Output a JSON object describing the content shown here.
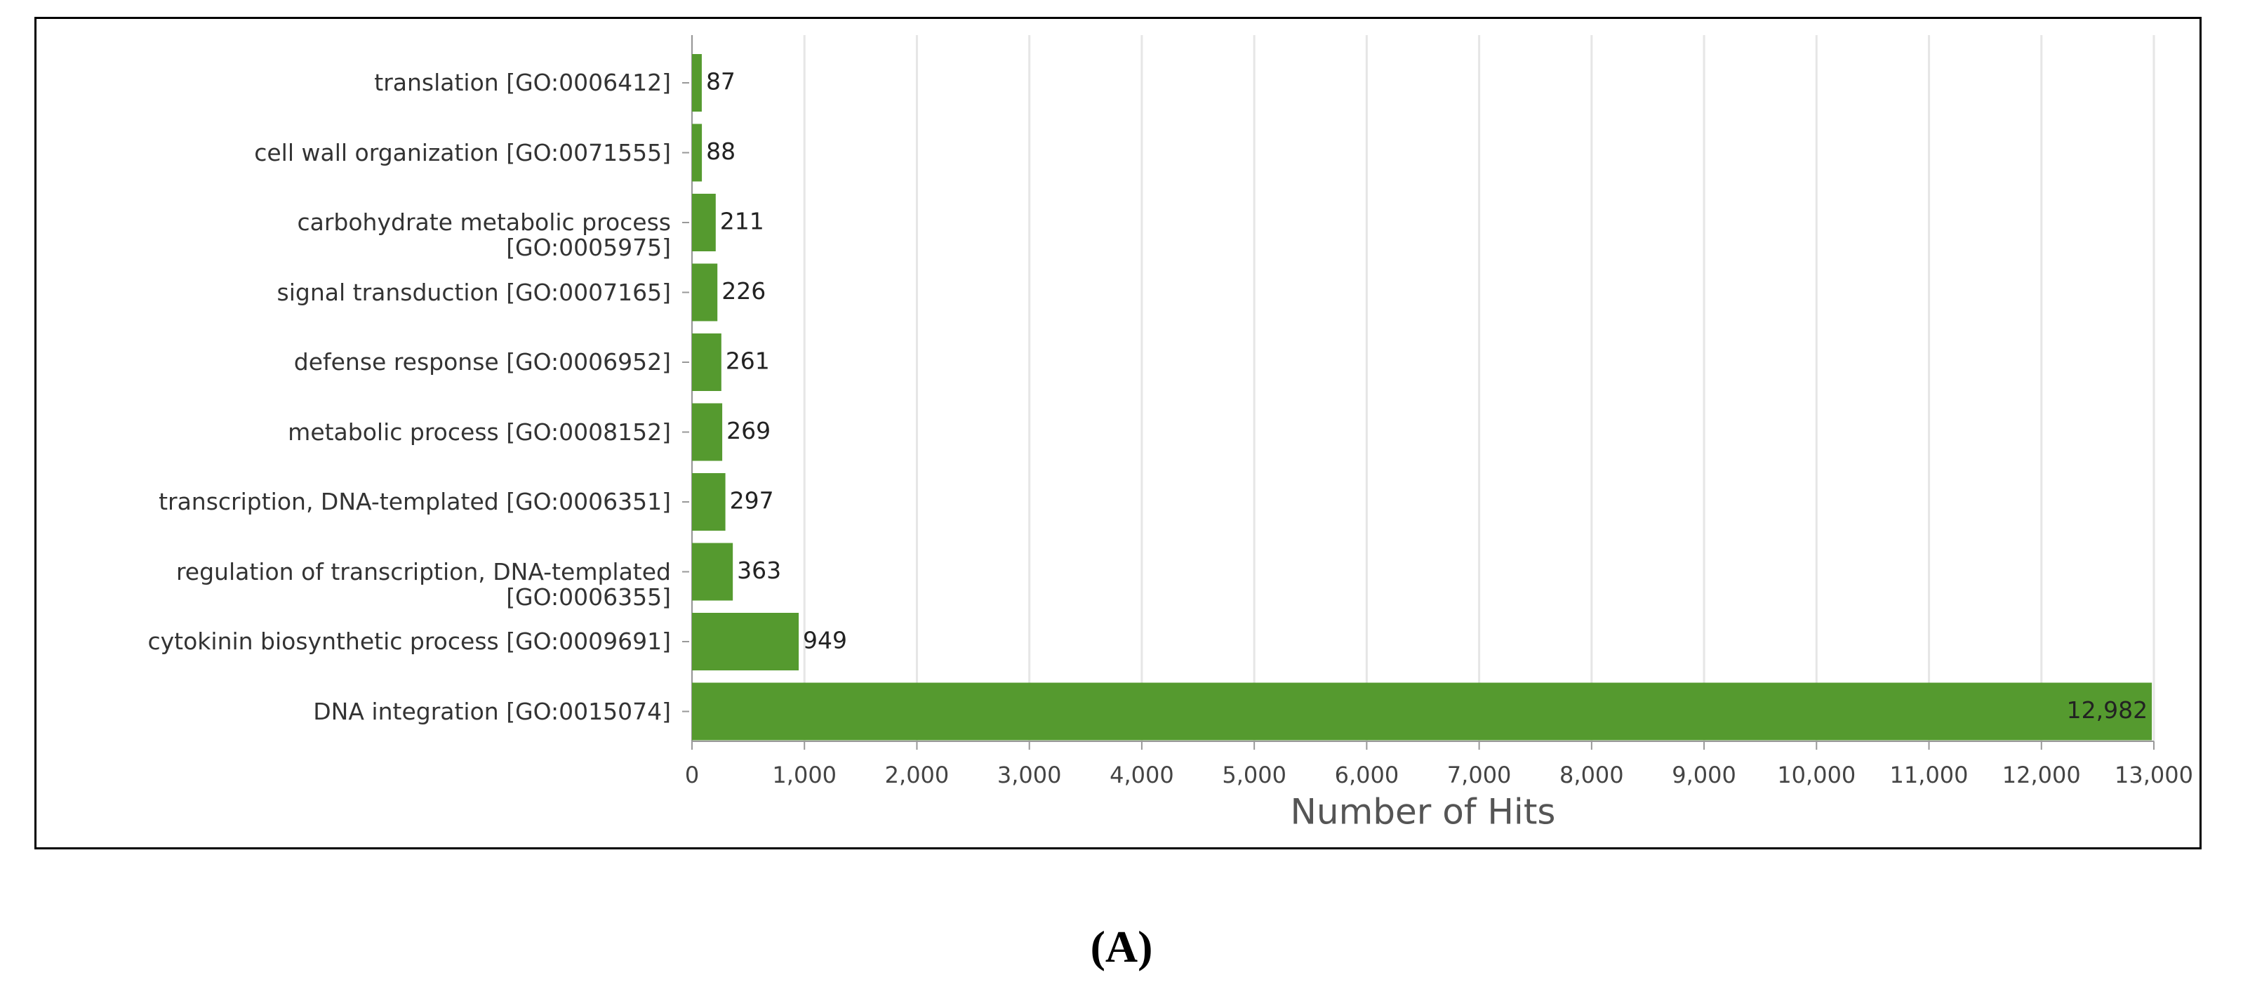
{
  "chart_data": {
    "type": "bar",
    "orientation": "horizontal",
    "categories": [
      "translation [GO:0006412]",
      "cell wall organization [GO:0071555]",
      "carbohydrate metabolic process\n[GO:0005975]",
      "signal transduction [GO:0007165]",
      "defense response [GO:0006952]",
      "metabolic process [GO:0008152]",
      "transcription, DNA-templated [GO:0006351]",
      "regulation of transcription, DNA-templated\n[GO:0006355]",
      "cytokinin biosynthetic process [GO:0009691]",
      "DNA integration [GO:0015074]"
    ],
    "values": [
      87,
      88,
      211,
      226,
      261,
      269,
      297,
      363,
      949,
      12982
    ],
    "value_labels": [
      "87",
      "88",
      "211",
      "226",
      "261",
      "269",
      "297",
      "363",
      "949",
      "12,982"
    ],
    "color": "#559a2f",
    "xlabel": "Number of Hits",
    "xlim": [
      0,
      13000
    ],
    "xticks": [
      0,
      {
        "value": 1000,
        "label": "1,000"
      },
      {
        "value": 2000,
        "label": "2,000"
      },
      {
        "value": 3000,
        "label": "3,000"
      },
      {
        "value": 4000,
        "label": "4,000"
      },
      {
        "value": 5000,
        "label": "5,000"
      },
      {
        "value": 6000,
        "label": "6,000"
      },
      {
        "value": 7000,
        "label": "7,000"
      },
      {
        "value": 8000,
        "label": "8,000"
      },
      {
        "value": 9000,
        "label": "9,000"
      },
      {
        "value": 10000,
        "label": "10,000"
      },
      {
        "value": 11000,
        "label": "11,000"
      },
      {
        "value": 12000,
        "label": "12,000"
      },
      {
        "value": 13000,
        "label": "13,000"
      }
    ],
    "grid": true
  },
  "caption": "(A)"
}
